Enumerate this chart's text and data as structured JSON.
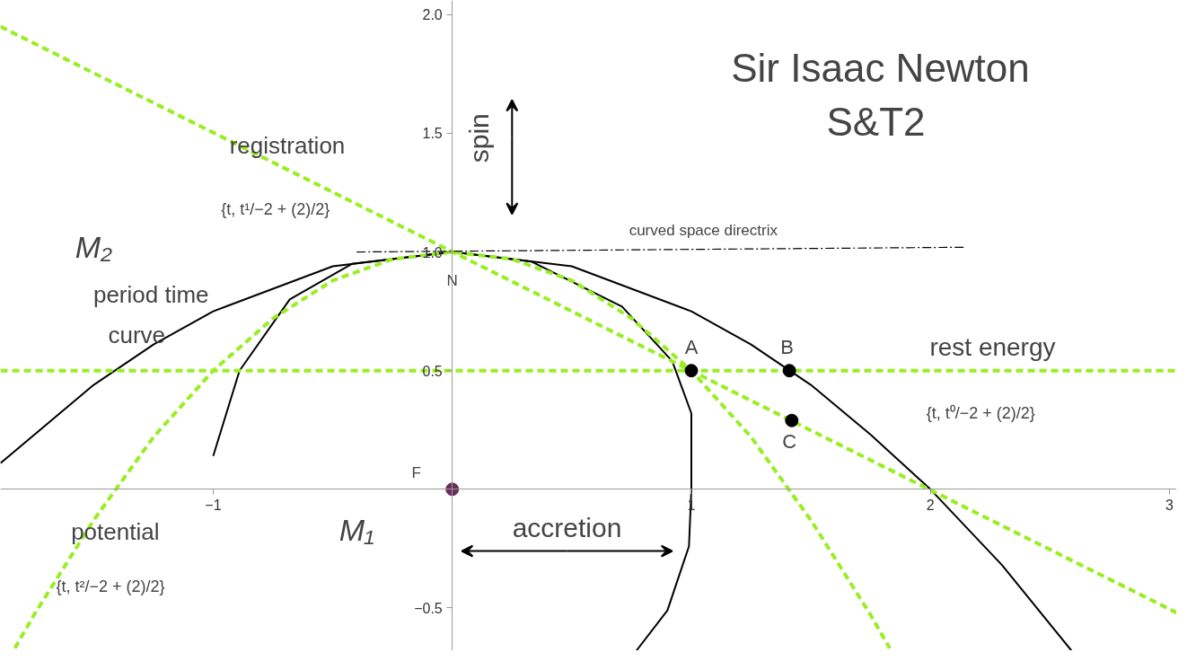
{
  "chart_data": {
    "type": "line",
    "title": "Sir Isaac Newton",
    "subtitle": "S&T2",
    "xlim": [
      -1.89,
      3.03
    ],
    "ylim": [
      -0.68,
      2.06
    ],
    "xticks": [
      {
        "value": -1,
        "label": "−1"
      },
      {
        "value": 0,
        "label": null
      },
      1,
      2,
      3
    ],
    "yticks": [
      {
        "value": -0.5,
        "label": "−0.5"
      },
      0.5,
      {
        "value": 1,
        "label": "1.0"
      },
      1.5,
      {
        "value": 2,
        "label": "2.0"
      }
    ],
    "grid": false,
    "series": [
      {
        "type": "line",
        "color": "#000000",
        "line_style": "solid",
        "x": [
          -1.89,
          -1.5,
          -1.25,
          -1.0,
          -0.5,
          0,
          0.5,
          1.0,
          1.25,
          1.5,
          1.75,
          2.0,
          2.3,
          2.59
        ],
        "values": [
          0.11,
          0.44,
          0.61,
          0.75,
          0.94,
          1.0,
          0.94,
          0.75,
          0.61,
          0.44,
          0.23,
          0.0,
          -0.32,
          -0.68
        ]
      },
      {
        "type": "line",
        "color": "#000000",
        "line_style": "solid",
        "x": [
          -1.0,
          -0.89,
          -0.68,
          -0.42,
          0,
          0.33,
          0.71,
          0.92,
          1.0,
          1.0,
          0.99,
          0.9,
          0.77
        ],
        "values": [
          0.14,
          0.5,
          0.8,
          0.95,
          1.0,
          0.96,
          0.77,
          0.54,
          0.32,
          0.0,
          -0.24,
          -0.51,
          -0.68
        ]
      },
      {
        "type": "line",
        "color": "#99ee22",
        "line_style": "dashed",
        "x": [
          -1.83,
          -1.75,
          -1.5,
          -1.25,
          -1.0,
          -0.75,
          -0.5,
          -0.25,
          0,
          0.25,
          0.5,
          0.75,
          1.0,
          1.25,
          1.5,
          1.75,
          1.83
        ],
        "values": [
          -0.67,
          -0.53,
          -0.13,
          0.22,
          0.5,
          0.72,
          0.88,
          0.97,
          1.0,
          0.97,
          0.88,
          0.72,
          0.5,
          0.22,
          -0.13,
          -0.53,
          -0.67
        ]
      },
      {
        "type": "line",
        "color": "#99ee22",
        "line_style": "dashed",
        "x": [
          -1.89,
          3.03
        ],
        "values": [
          1.95,
          -0.52
        ]
      },
      {
        "type": "line",
        "color": "#99ee22",
        "line_style": "dashed",
        "x": [
          -1.89,
          3.03
        ],
        "values": [
          0.5,
          0.5
        ]
      },
      {
        "type": "line",
        "color": "#000000",
        "line_style": "dashdot",
        "x": [
          -0.4,
          2.14
        ],
        "values": [
          1.0,
          1.02
        ]
      },
      {
        "type": "scatter",
        "color": "#000000",
        "marker": "circle",
        "x": [
          1.0,
          1.41,
          1.42
        ],
        "values": [
          0.5,
          0.5,
          0.29
        ]
      },
      {
        "type": "scatter",
        "color": "#6b2d5c",
        "marker": "circle",
        "x": [
          0
        ],
        "values": [
          0
        ]
      }
    ],
    "annotations": [
      "registration",
      "{t, t¹/−2 + (2)/2}",
      "M₂",
      "period time",
      "curve",
      "potential",
      "{t, t²/−2 + (2)/2}",
      "M₁",
      "accretion",
      "spin",
      "curved space directrix",
      "N",
      "F",
      "A",
      "B",
      "C",
      "rest energy",
      "{t, t⁰/−2 + (2)/2}"
    ]
  }
}
